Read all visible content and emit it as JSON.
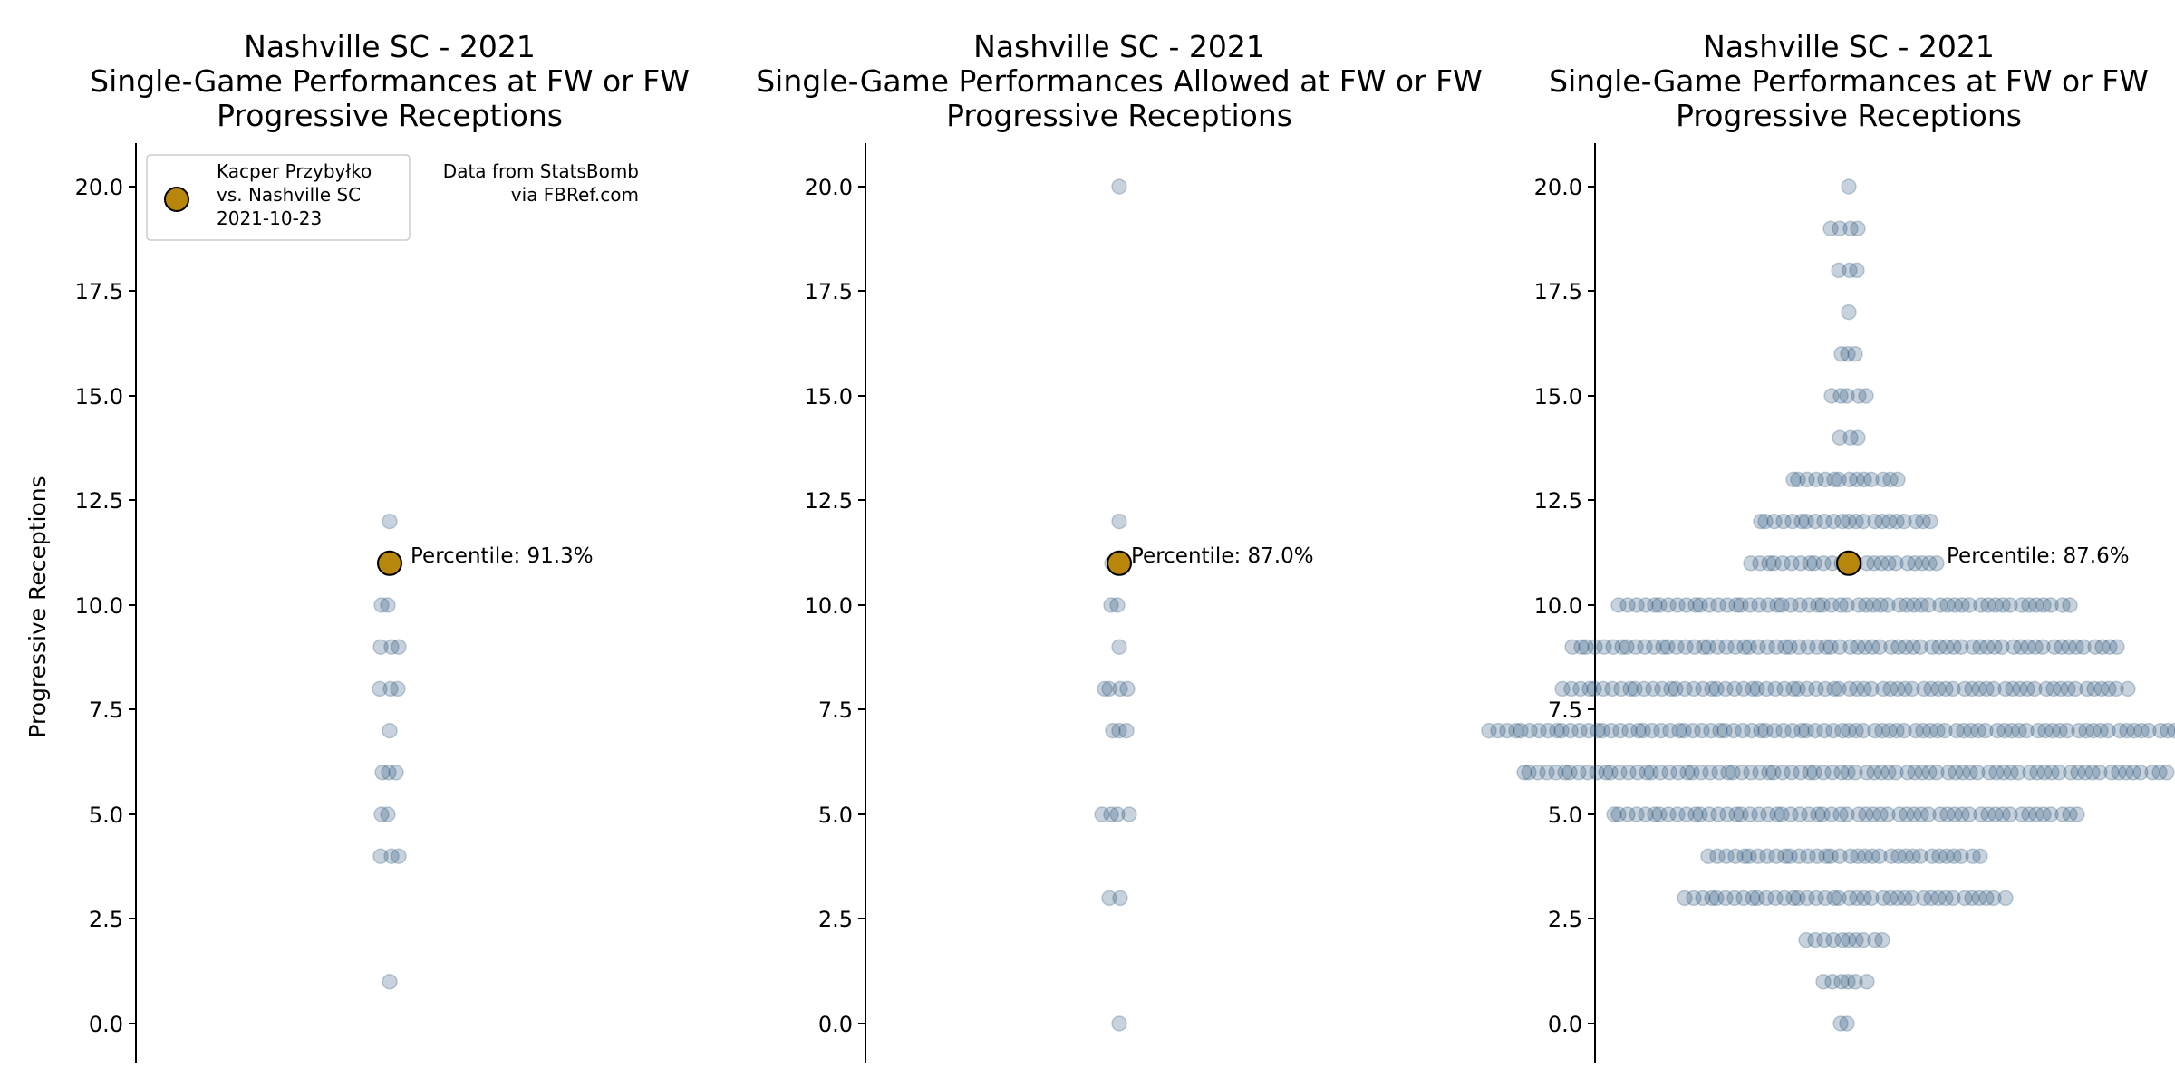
{
  "colors": {
    "background": "#ffffff",
    "dot": "#1f4a73",
    "dot_opacity": 0.25,
    "highlight": "#b8860b",
    "highlight_edge": "#000000"
  },
  "legend": {
    "label_lines": [
      "Kacper Przybyłko",
      "vs. Nashville SC",
      "2021-10-23"
    ],
    "placement": "upper-left"
  },
  "source_note": {
    "line1": "Data from StatsBomb",
    "line2": "via FBRef.com"
  },
  "chart_data": [
    {
      "type": "scatter",
      "subtype": "beeswarm",
      "title_lines": [
        "Nashville SC - 2021",
        "Single-Game Performances at FW or FW",
        "Progressive Receptions"
      ],
      "ylabel": "Progressive Receptions",
      "ylim": [
        -1,
        21
      ],
      "yticks": [
        "0.0",
        "2.5",
        "5.0",
        "7.5",
        "10.0",
        "12.5",
        "15.0",
        "17.5",
        "20.0"
      ],
      "grid": false,
      "values": {
        "1": 1,
        "4": 3,
        "5": 2,
        "6": 3,
        "7": 1,
        "8": 3,
        "9": 3,
        "10": 2,
        "11": 1,
        "12": 1
      },
      "highlight": {
        "y": 11,
        "label": "Percentile: 91.3%"
      }
    },
    {
      "type": "scatter",
      "subtype": "beeswarm",
      "title_lines": [
        "Nashville SC - 2021",
        "Single-Game Performances Allowed at FW or FW",
        "Progressive Receptions"
      ],
      "ylabel": "",
      "ylim": [
        -1,
        21
      ],
      "yticks": [
        "0.0",
        "2.5",
        "5.0",
        "7.5",
        "10.0",
        "12.5",
        "15.0",
        "17.5",
        "20.0"
      ],
      "grid": false,
      "values": {
        "0": 1,
        "3": 2,
        "5": 4,
        "7": 3,
        "8": 4,
        "9": 1,
        "10": 2,
        "11": 2,
        "12": 1,
        "20": 1
      },
      "highlight": {
        "y": 11,
        "label": "Percentile: 87.0%"
      }
    },
    {
      "type": "scatter",
      "subtype": "beeswarm",
      "title_lines": [
        "Nashville SC - 2021",
        "Single-Game Performances at FW or FW",
        "Progressive Receptions"
      ],
      "ylabel": "",
      "ylim": [
        -1,
        21
      ],
      "yticks": [
        "0.0",
        "2.5",
        "5.0",
        "7.5",
        "10.0",
        "12.5",
        "15.0",
        "17.5",
        "20.0"
      ],
      "grid": false,
      "values": {
        "0": 2,
        "1": 6,
        "2": 10,
        "3": 40,
        "4": 34,
        "5": 58,
        "6": 80,
        "7": 88,
        "8": 70,
        "9": 68,
        "10": 56,
        "11": 24,
        "12": 22,
        "13": 14,
        "14": 3,
        "15": 5,
        "16": 3,
        "17": 1,
        "18": 3,
        "19": 4,
        "20": 1
      },
      "highlight": {
        "y": 11,
        "label": "Percentile: 87.6%"
      }
    }
  ]
}
